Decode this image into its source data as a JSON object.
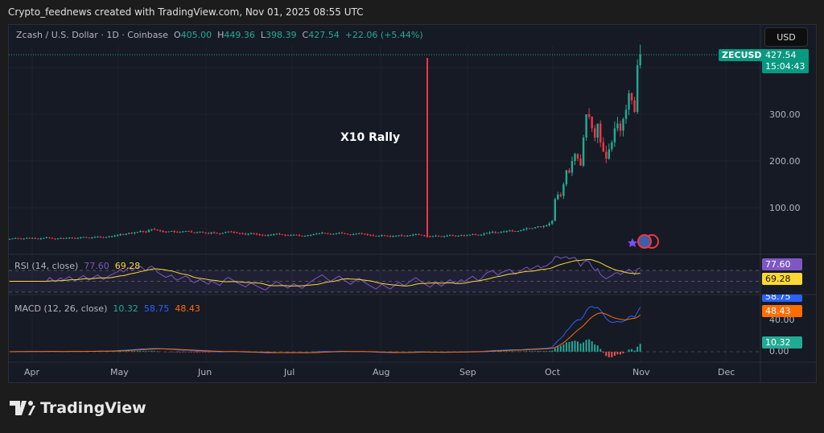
{
  "header": "Crypto_feednews created with TradingView.com, Nov 01, 2025 08:55 UTC",
  "legend": {
    "symbol": "Zcash / U.S. Dollar · 1D · Coinbase",
    "o_label": "O",
    "o": "405.00",
    "h_label": "H",
    "h": "449.36",
    "l_label": "L",
    "l": "398.39",
    "c_label": "C",
    "c": "427.54",
    "change": "+22.06 (+5.44%)"
  },
  "currency": "USD",
  "ticker_label": "ZECUSD",
  "last_price": "427.54",
  "countdown": "15:04:43",
  "annotation": "X10 Rally",
  "price_ticks": [
    "300.00",
    "200.00",
    "100.00"
  ],
  "rsi": {
    "label": "RSI (14, close)",
    "rsi": "77.60",
    "ma": "69.28"
  },
  "macd": {
    "label": "MACD (12, 26, close)",
    "hist": "10.32",
    "macd": "58.75",
    "signal": "48.43",
    "ticks": [
      "40.00",
      "0.00"
    ]
  },
  "months": [
    "Apr",
    "May",
    "Jun",
    "Jul",
    "Aug",
    "Sep",
    "Oct",
    "Nov",
    "Dec"
  ],
  "logo": "TradingView",
  "colors": {
    "up": "#22ab94",
    "down": "#f23645",
    "rsi": "#7e57c2",
    "rsi_ma": "#fdd835",
    "macd": "#2962ff",
    "signal": "#ff6d00",
    "annotation_line": "#f23645"
  },
  "chart_data": {
    "type": "candlestick",
    "symbol": "ZECUSD",
    "interval": "1D",
    "start_date": "2025-03-24",
    "end_date": "2025-11-01",
    "closes": [
      33,
      34,
      35,
      34,
      33,
      34,
      35,
      34,
      35,
      34,
      33,
      34,
      35,
      36,
      35,
      34,
      33,
      34,
      35,
      34,
      35,
      36,
      35,
      34,
      35,
      36,
      37,
      36,
      35,
      36,
      37,
      38,
      37,
      36,
      37,
      38,
      39,
      40,
      41,
      43,
      42,
      44,
      46,
      45,
      47,
      48,
      50,
      49,
      48,
      52,
      54,
      53,
      51,
      50,
      49,
      48,
      49,
      50,
      48,
      47,
      48,
      49,
      50,
      49,
      47,
      46,
      47,
      48,
      47,
      46,
      45,
      47,
      46,
      45,
      44,
      46,
      48,
      49,
      48,
      47,
      46,
      45,
      44,
      43,
      44,
      45,
      44,
      43,
      42,
      41,
      40,
      41,
      42,
      43,
      44,
      43,
      42,
      41,
      40,
      41,
      42,
      41,
      40,
      39,
      40,
      41,
      42,
      43,
      44,
      45,
      46,
      45,
      44,
      43,
      44,
      45,
      46,
      45,
      44,
      43,
      42,
      43,
      44,
      45,
      44,
      43,
      42,
      41,
      40,
      39,
      40,
      41,
      40,
      39,
      38,
      39,
      40,
      41,
      40,
      39,
      40,
      41,
      42,
      43,
      42,
      41,
      40,
      39,
      38,
      39,
      40,
      39,
      38,
      39,
      40,
      41,
      40,
      39,
      40,
      41,
      40,
      41,
      42,
      43,
      42,
      41,
      42,
      44,
      46,
      47,
      48,
      47,
      46,
      48,
      49,
      50,
      51,
      50,
      49,
      50,
      52,
      54,
      56,
      55,
      56,
      58,
      60,
      59,
      61,
      62,
      66,
      72,
      118,
      128,
      125,
      150,
      180,
      175,
      200,
      215,
      205,
      190,
      250,
      300,
      295,
      270,
      250,
      280,
      240,
      220,
      205,
      225,
      240,
      270,
      280,
      265,
      290,
      310,
      345,
      330,
      305,
      405,
      427.54
    ],
    "last_candle": {
      "open": 405.0,
      "high": 449.36,
      "low": 398.39,
      "close": 427.54
    },
    "y_ticks": [
      100,
      200,
      300
    ],
    "annotation": {
      "date": "2025-08-17",
      "text": "X10 Rally"
    }
  }
}
